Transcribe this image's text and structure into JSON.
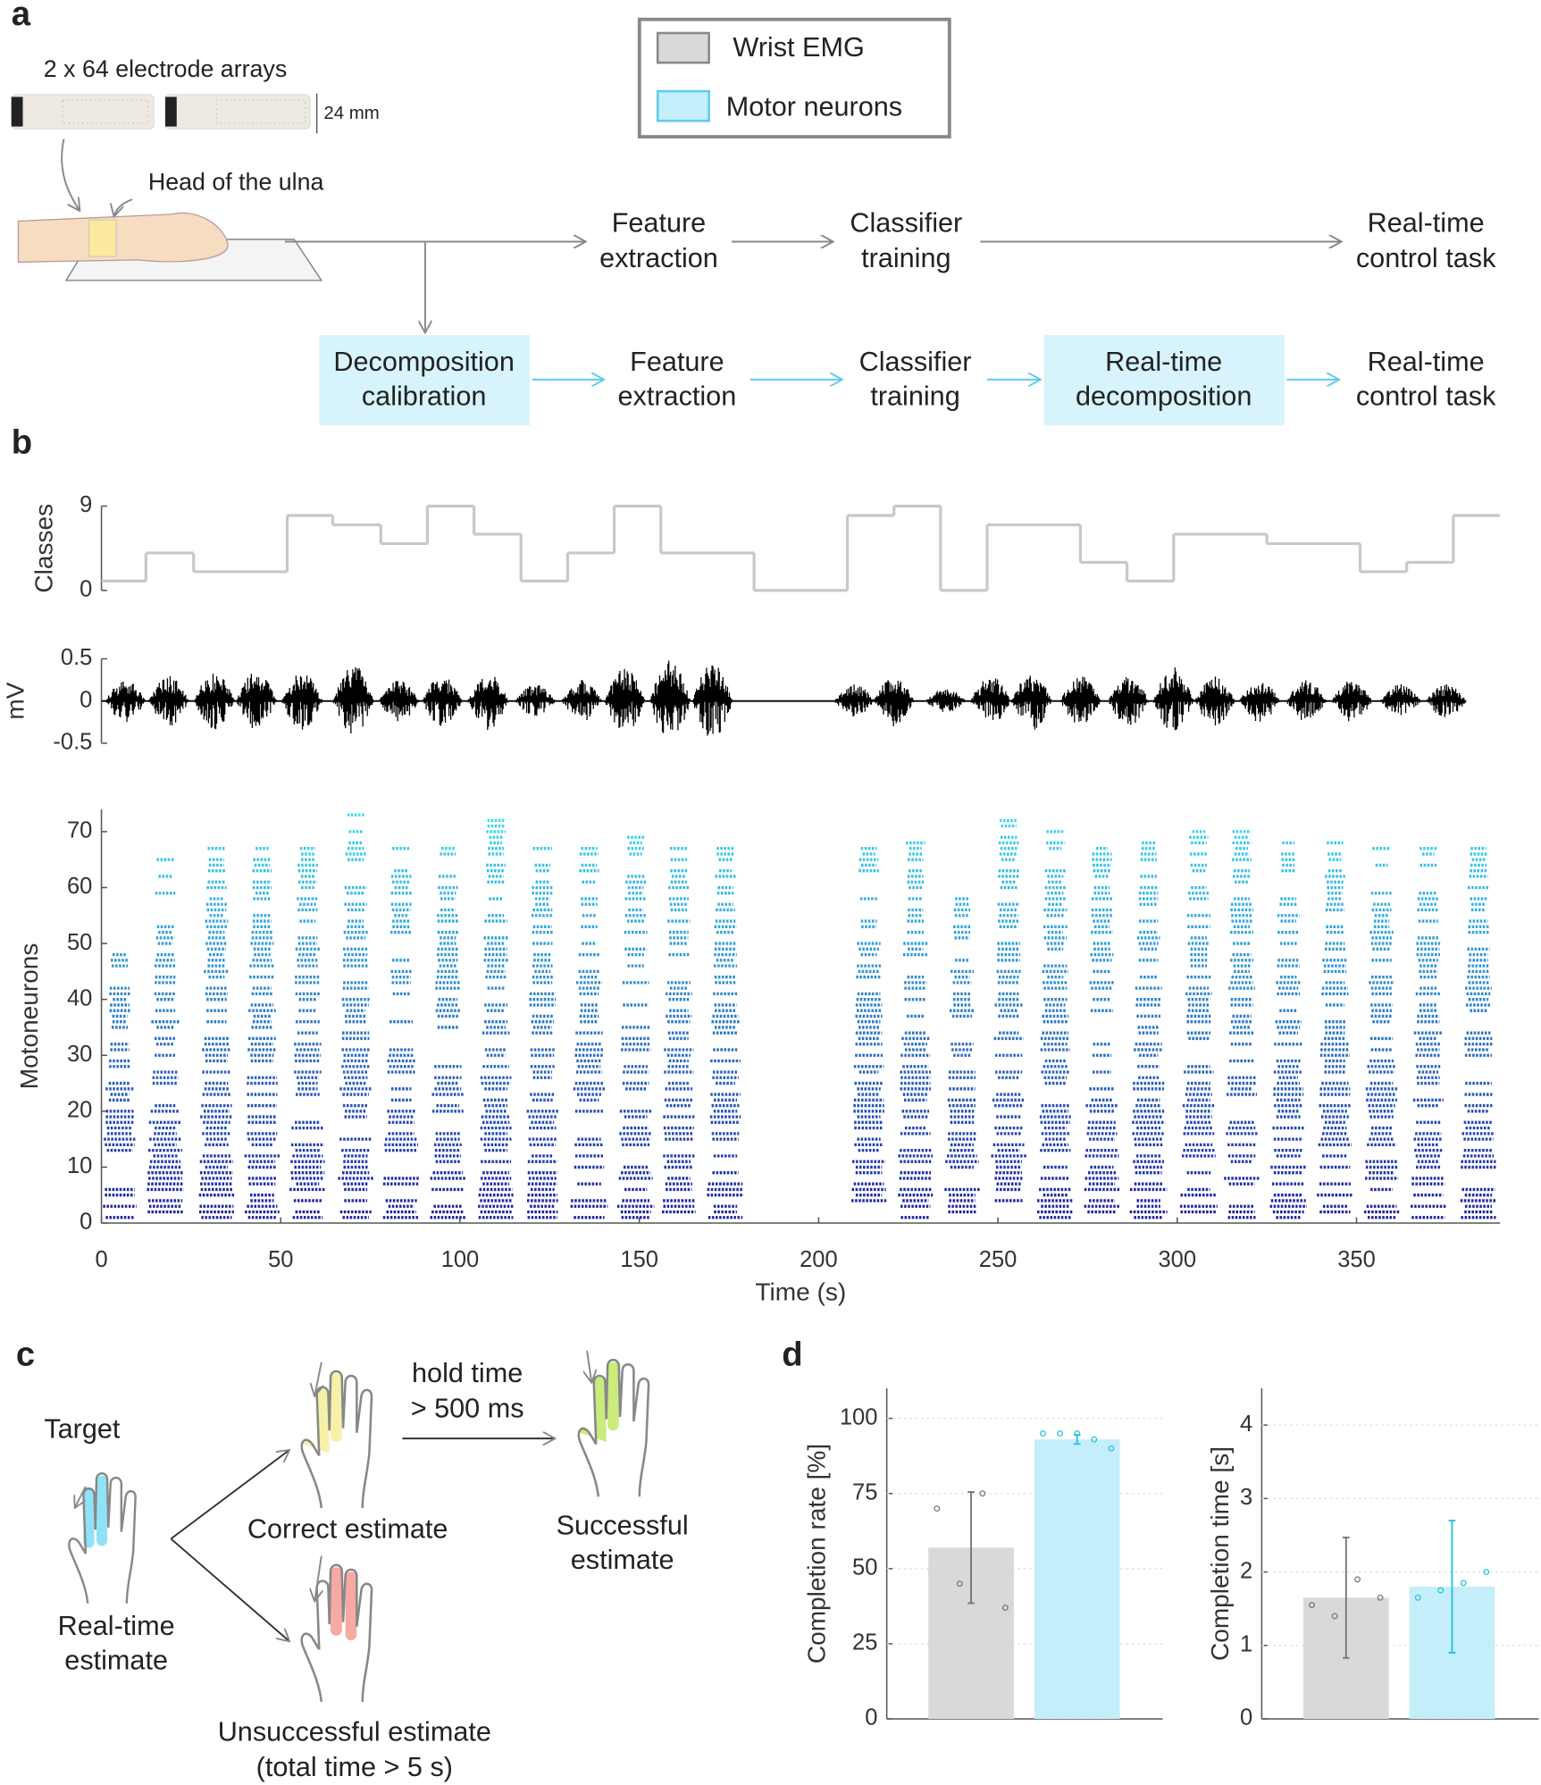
{
  "labels": [
    "a",
    "b",
    "c",
    "d"
  ],
  "panel_a": {
    "arrays": "2 x 64 electrode arrays",
    "scale": "24 mm",
    "landmark": "Head of the ulna",
    "top_flow": [
      [
        "Feature",
        "extraction"
      ],
      [
        "Classifier",
        "training"
      ],
      [
        "Real-time",
        "control task"
      ]
    ],
    "bottom_flow": [
      [
        "Decomposition",
        "calibration"
      ],
      [
        "Feature",
        "extraction"
      ],
      [
        "Classifier",
        "training"
      ],
      [
        "Real-time",
        "decomposition"
      ],
      [
        "Real-time",
        "control task"
      ]
    ]
  },
  "panel_c": {
    "target": "Target",
    "realtime": [
      "Real-time",
      "estimate"
    ],
    "correct": "Correct estimate",
    "hold": [
      "hold time",
      "> 500 ms"
    ],
    "successful": [
      "Successful",
      "estimate"
    ],
    "unsuccessful": [
      "Unsuccessful estimate",
      "(total time > 5 s)"
    ]
  },
  "chart_data": [
    {
      "type": "step",
      "ylabel": "Classes",
      "color": "#c8c8c8",
      "x": [
        0,
        12.4,
        25.7,
        51.8,
        64.5,
        77.9,
        90.9,
        103.9,
        117,
        130,
        143,
        156,
        182,
        208,
        221,
        234,
        247,
        273,
        286,
        299,
        325,
        351,
        364,
        377
      ],
      "values": [
        1,
        4,
        2,
        8,
        7,
        5,
        9,
        6,
        1,
        4,
        9,
        4,
        0,
        8,
        9,
        0,
        7,
        3,
        1,
        6,
        5,
        2,
        3,
        8
      ],
      "xlim": [
        0,
        390
      ],
      "ylim": [
        0,
        9
      ],
      "yticks": [
        0,
        9
      ]
    },
    {
      "type": "emg",
      "ylabel": "mV",
      "color": "#000000",
      "x": [
        6.7,
        18.8,
        31.5,
        43.2,
        55.9,
        70.2,
        83,
        95,
        107.8,
        121,
        134,
        146,
        158.6,
        170.4,
        210,
        221,
        235.5,
        248,
        259.4,
        273,
        286.4,
        299,
        310.5,
        323,
        336,
        348.7,
        362.3,
        375
      ],
      "values": [
        0.25,
        0.3,
        0.35,
        0.35,
        0.35,
        0.45,
        0.25,
        0.3,
        0.35,
        0.2,
        0.25,
        0.4,
        0.5,
        0.45,
        0.2,
        0.3,
        0.15,
        0.3,
        0.35,
        0.3,
        0.3,
        0.4,
        0.3,
        0.25,
        0.25,
        0.25,
        0.2,
        0.2
      ],
      "xlim": [
        0,
        390
      ],
      "ylim": [
        -0.5,
        0.5
      ],
      "yticks": [
        -0.5,
        0,
        0.5
      ]
    },
    {
      "type": "raster",
      "xlabel": "Time (s)",
      "ylabel": "Motoneurons",
      "colors": [
        "#1c1c9c",
        "#3cdcf2"
      ],
      "x": [
        5.1,
        17.8,
        32.1,
        44.8,
        57.5,
        70.9,
        83.6,
        96.6,
        110,
        123,
        136,
        149,
        161,
        174,
        214,
        227,
        240,
        253,
        266,
        279,
        292,
        306,
        318,
        331,
        344,
        357,
        370,
        384
      ],
      "values": [
        48,
        65,
        67,
        67,
        67,
        73,
        67,
        67,
        72,
        67,
        67,
        69,
        67,
        67,
        67,
        68,
        58,
        72,
        70,
        67,
        68,
        70,
        70,
        68,
        68,
        67,
        67,
        67
      ],
      "xlim": [
        0,
        390
      ],
      "ylim": [
        0,
        74
      ],
      "xticks": [
        0,
        50,
        100,
        150,
        200,
        250,
        300,
        350
      ],
      "yticks": [
        0,
        10,
        20,
        30,
        40,
        50,
        60,
        70
      ]
    },
    {
      "type": "bar",
      "ylabel": "Completion rate [%]",
      "grid": true,
      "series": [
        {
          "name": "Wrist EMG",
          "color": "#d9d9d9",
          "error_color": "#777777",
          "values": [
            57
          ],
          "errors": [
            18.5
          ],
          "points": [
            70,
            45,
            75,
            37
          ]
        },
        {
          "name": "Motor neurons",
          "color": "#c4eefa",
          "error_color": "#2bc0dd",
          "values": [
            93
          ],
          "errors": [
            1.5
          ],
          "points": [
            95,
            95,
            95,
            93,
            90
          ]
        }
      ],
      "ylim": [
        0,
        110
      ],
      "yticks": [
        0,
        25,
        50,
        75,
        100
      ]
    },
    {
      "type": "bar",
      "ylabel": "Completion time [s]",
      "grid": true,
      "series": [
        {
          "name": "Wrist EMG",
          "color": "#d9d9d9",
          "error_color": "#777777",
          "values": [
            1.65
          ],
          "errors": [
            0.82
          ],
          "points": [
            1.55,
            1.4,
            1.9,
            1.65
          ]
        },
        {
          "name": "Motor neurons",
          "color": "#c4eefa",
          "error_color": "#2bc0dd",
          "values": [
            1.8
          ],
          "errors": [
            0.9
          ],
          "points": [
            1.65,
            1.75,
            1.85,
            2.0
          ]
        }
      ],
      "ylim": [
        0,
        4.5
      ],
      "yticks": [
        0,
        1,
        2,
        3,
        4
      ]
    }
  ]
}
